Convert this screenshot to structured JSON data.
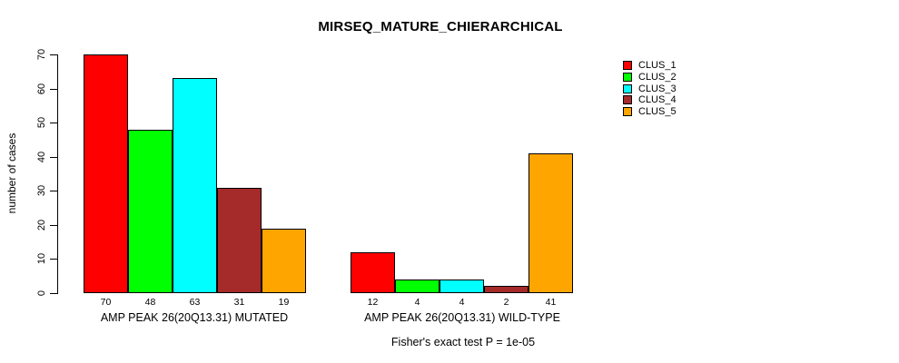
{
  "title": "MIRSEQ_MATURE_CHIERARCHICAL",
  "footer": "Fisher's exact test P = 1e-05",
  "legend": {
    "items": [
      {
        "label": "CLUS_1",
        "color": "#FF0000"
      },
      {
        "label": "CLUS_2",
        "color": "#00FF00"
      },
      {
        "label": "CLUS_3",
        "color": "#00FFFF"
      },
      {
        "label": "CLUS_4",
        "color": "#A52A2A"
      },
      {
        "label": "CLUS_5",
        "color": "#FFA500"
      }
    ]
  },
  "chart_data": {
    "type": "bar",
    "title": "MIRSEQ_MATURE_CHIERARCHICAL",
    "xlabel": "",
    "ylabel": "number of cases",
    "ylim": [
      0,
      70
    ],
    "yticks": [
      0,
      10,
      20,
      30,
      40,
      50,
      60,
      70
    ],
    "grid": false,
    "legend_position": "right",
    "bar_value_labels": true,
    "groups": [
      {
        "label": "AMP PEAK 26(20Q13.31) MUTATED",
        "values": [
          70,
          48,
          63,
          31,
          19
        ]
      },
      {
        "label": "AMP PEAK 26(20Q13.31) WILD-TYPE",
        "values": [
          12,
          4,
          4,
          2,
          41
        ]
      }
    ],
    "series": [
      {
        "name": "CLUS_1",
        "color": "#FF0000",
        "values": [
          70,
          12
        ]
      },
      {
        "name": "CLUS_2",
        "color": "#00FF00",
        "values": [
          48,
          4
        ]
      },
      {
        "name": "CLUS_3",
        "color": "#00FFFF",
        "values": [
          63,
          4
        ]
      },
      {
        "name": "CLUS_4",
        "color": "#A52A2A",
        "values": [
          31,
          2
        ]
      },
      {
        "name": "CLUS_5",
        "color": "#FFA500",
        "values": [
          19,
          41
        ]
      }
    ],
    "annotation": "Fisher's exact test P = 1e-05"
  }
}
